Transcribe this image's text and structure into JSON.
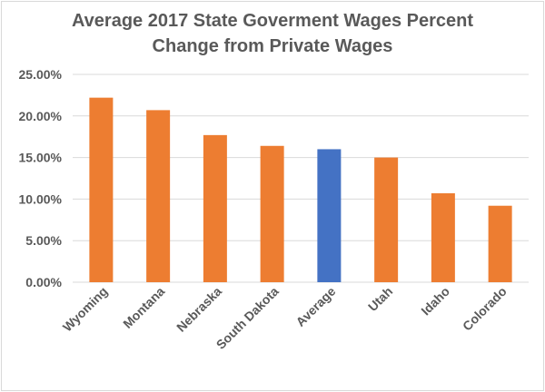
{
  "chart_data": {
    "type": "bar",
    "title": "Average 2017 State Goverment Wages Percent Change from Private Wages",
    "title_lines": [
      "Average 2017 State Goverment Wages Percent",
      "Change from Private Wages"
    ],
    "categories": [
      "Wyoming",
      "Montana",
      "Nebraska",
      "South Dakota",
      "Average",
      "Utah",
      "Idaho",
      "Colorado"
    ],
    "values": [
      0.222,
      0.207,
      0.177,
      0.164,
      0.16,
      0.15,
      0.107,
      0.092
    ],
    "highlight_category": "Average",
    "colors": {
      "default": "#ED7D31",
      "highlight": "#4472C4",
      "grid": "#d9d9d9",
      "text": "#595959"
    },
    "ylim": [
      0,
      0.25
    ],
    "yticks": [
      0,
      0.05,
      0.1,
      0.15,
      0.2,
      0.25
    ],
    "ytick_labels": [
      "0.00%",
      "5.00%",
      "10.00%",
      "15.00%",
      "20.00%",
      "25.00%"
    ],
    "grid": true,
    "legend": "none",
    "xlabel": "",
    "ylabel": ""
  }
}
